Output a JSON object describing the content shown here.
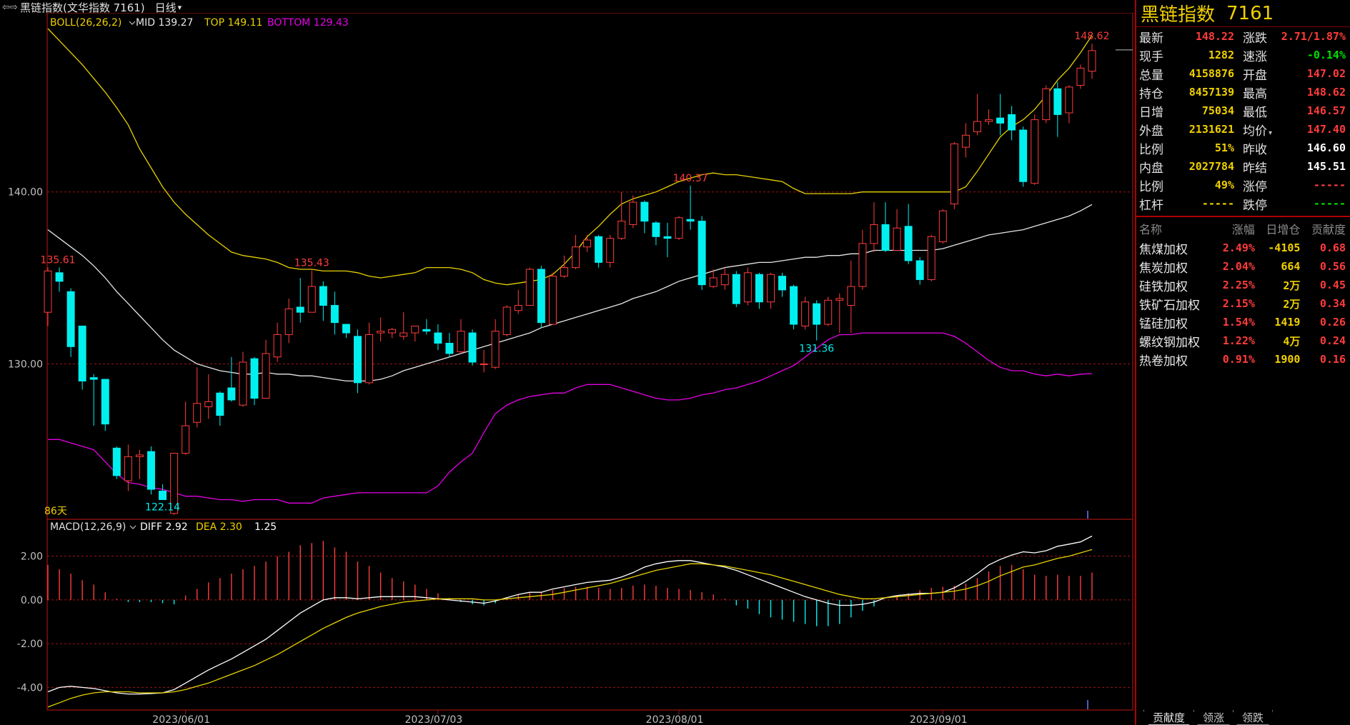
{
  "header": {
    "back_glyph": "⇦⇨",
    "title": "黑链指数(文华指数 7161)",
    "period": "日线",
    "period_icon": "chevron-down-icon"
  },
  "colors": {
    "up": "#ff3c3c",
    "down": "#00f0f0",
    "mid": "#e6e6e6",
    "top": "#e6d200",
    "bottom": "#e600e6",
    "grid": "#a01414",
    "yellow": "#f0d000",
    "green": "#00e000"
  },
  "indicators": {
    "boll": {
      "label": "BOLL(26,26,2)",
      "mid": "MID 139.27",
      "top": "TOP 149.11",
      "bottom": "BOTTOM 129.43"
    },
    "macd": {
      "label": "MACD(12,26,9)",
      "diff": "DIFF 2.92",
      "dea": "DEA 2.30",
      "macd": "1.25"
    }
  },
  "chart_data": {
    "type": "candlestick",
    "price_axis_ticks": [
      "140.00",
      "130.00"
    ],
    "macd_axis_ticks": [
      "2.00",
      "0.00",
      "-2.00",
      "-4.00"
    ],
    "date_labels": [
      "2023/06/01",
      "2023/07/03",
      "2023/08/01",
      "2023/09/01"
    ],
    "span_label": "86天",
    "annotations": [
      {
        "text": "135.61",
        "color": "up"
      },
      {
        "text": "122.14",
        "color": "down"
      },
      {
        "text": "135.43",
        "color": "up"
      },
      {
        "text": "140.37",
        "color": "up"
      },
      {
        "text": "131.36",
        "color": "down"
      },
      {
        "text": "148.62",
        "color": "up"
      }
    ],
    "ylim_price": [
      121,
      150
    ],
    "ylim_macd": [
      -5,
      3
    ],
    "candles": [
      [
        133,
        135.4,
        132.2,
        135.61
      ],
      [
        135.3,
        134.8,
        134.2,
        135.61
      ],
      [
        134.2,
        131.0,
        130.4,
        134.4
      ],
      [
        132.2,
        129.0,
        128.5,
        132.2
      ],
      [
        129.2,
        129.1,
        126.4,
        129.4
      ],
      [
        129.1,
        126.5,
        126.1,
        129.1
      ],
      [
        125.1,
        123.5,
        123.3,
        125.2
      ],
      [
        123.2,
        124.6,
        122.6,
        125.3
      ],
      [
        124.6,
        124.7,
        123.3,
        125.0
      ],
      [
        124.9,
        122.7,
        122.4,
        125.2
      ],
      [
        122.6,
        122.1,
        122.14,
        123.0
      ],
      [
        121.3,
        124.8,
        121.2,
        124.8
      ],
      [
        124.8,
        126.4,
        124.7,
        127.8
      ],
      [
        126.6,
        127.7,
        126.3,
        129.8
      ],
      [
        127.5,
        127.8,
        126.8,
        129.4
      ],
      [
        128.3,
        127.0,
        126.4,
        128.4
      ],
      [
        128.6,
        127.9,
        127.8,
        130.4
      ],
      [
        127.6,
        130.1,
        127.5,
        130.7
      ],
      [
        130.3,
        128.0,
        127.6,
        130.4
      ],
      [
        128.0,
        130.6,
        128.0,
        131.4
      ],
      [
        130.4,
        131.7,
        130.1,
        132.4
      ],
      [
        131.7,
        133.2,
        131.2,
        133.8
      ],
      [
        133.3,
        133.0,
        132.4,
        135.0
      ],
      [
        133.0,
        134.5,
        133.0,
        135.43
      ],
      [
        134.5,
        133.4,
        132.5,
        134.8
      ],
      [
        133.4,
        132.4,
        131.7,
        134.2
      ],
      [
        132.3,
        131.8,
        131.5,
        132.3
      ],
      [
        131.6,
        128.9,
        128.3,
        132.0
      ],
      [
        128.9,
        131.7,
        128.8,
        132.4
      ],
      [
        131.8,
        131.9,
        131.3,
        132.7
      ],
      [
        131.8,
        132.0,
        131.5,
        132.1
      ],
      [
        131.6,
        131.8,
        131.4,
        133.0
      ],
      [
        131.8,
        132.2,
        131.3,
        132.2
      ],
      [
        132.0,
        131.9,
        131.7,
        132.6
      ],
      [
        131.8,
        131.2,
        130.8,
        132.3
      ],
      [
        131.2,
        130.6,
        130.4,
        131.8
      ],
      [
        130.7,
        131.9,
        130.6,
        132.6
      ],
      [
        131.8,
        130.1,
        129.9,
        132.0
      ],
      [
        130.0,
        130.0,
        129.5,
        130.8
      ],
      [
        129.8,
        131.9,
        129.7,
        132.6
      ],
      [
        131.7,
        133.3,
        131.6,
        133.4
      ],
      [
        133.1,
        133.4,
        132.9,
        134.3
      ],
      [
        133.4,
        135.5,
        133.4,
        135.6
      ],
      [
        135.5,
        132.4,
        132.1,
        135.7
      ],
      [
        132.3,
        135.1,
        132.3,
        135.3
      ],
      [
        135.1,
        135.6,
        135.0,
        136.3
      ],
      [
        135.6,
        136.8,
        135.5,
        137.5
      ],
      [
        136.8,
        137.2,
        136.5,
        137.5
      ],
      [
        137.4,
        135.9,
        135.6,
        137.5
      ],
      [
        135.9,
        137.3,
        135.6,
        137.5
      ],
      [
        137.3,
        138.3,
        137.2,
        140.0
      ],
      [
        138.1,
        139.4,
        137.9,
        139.8
      ],
      [
        139.4,
        138.3,
        137.6,
        139.5
      ],
      [
        138.2,
        137.4,
        136.9,
        138.3
      ],
      [
        137.4,
        137.3,
        136.2,
        138.2
      ],
      [
        137.3,
        138.5,
        137.2,
        138.6
      ],
      [
        138.4,
        138.3,
        137.8,
        140.37
      ],
      [
        138.3,
        134.6,
        134.3,
        138.6
      ],
      [
        134.5,
        135.0,
        134.4,
        135.5
      ],
      [
        134.6,
        135.2,
        134.3,
        135.6
      ],
      [
        135.2,
        133.5,
        133.3,
        135.4
      ],
      [
        133.6,
        135.3,
        133.4,
        135.6
      ],
      [
        135.2,
        133.6,
        133.2,
        135.3
      ],
      [
        133.6,
        135.2,
        133.2,
        135.3
      ],
      [
        135.1,
        134.3,
        133.9,
        135.3
      ],
      [
        134.5,
        132.3,
        132.0,
        134.6
      ],
      [
        132.2,
        133.6,
        132.0,
        133.9
      ],
      [
        133.5,
        132.3,
        131.36,
        133.7
      ],
      [
        132.3,
        133.7,
        132.2,
        133.9
      ],
      [
        133.7,
        133.8,
        131.8,
        134.1
      ],
      [
        133.4,
        134.5,
        131.8,
        136.0
      ],
      [
        134.5,
        137.0,
        134.3,
        137.8
      ],
      [
        137.0,
        138.1,
        136.5,
        139.4
      ],
      [
        138.1,
        136.6,
        136.5,
        139.4
      ],
      [
        136.6,
        137.9,
        136.6,
        139.0
      ],
      [
        138.0,
        136.0,
        135.8,
        139.3
      ],
      [
        136.0,
        134.9,
        134.6,
        136.2
      ],
      [
        134.9,
        137.4,
        134.8,
        137.5
      ],
      [
        137.1,
        138.9,
        137.0,
        139.0
      ],
      [
        139.3,
        142.8,
        139.0,
        142.9
      ],
      [
        142.6,
        143.3,
        142.0,
        144.0
      ],
      [
        143.5,
        144.1,
        143.3,
        145.7
      ],
      [
        144.1,
        144.2,
        143.9,
        144.8
      ],
      [
        144.3,
        144.0,
        143.3,
        145.7
      ],
      [
        144.5,
        143.6,
        143.0,
        145.0
      ],
      [
        143.6,
        140.6,
        140.3,
        143.8
      ],
      [
        140.5,
        144.2,
        140.4,
        144.5
      ],
      [
        144.2,
        146.0,
        144.0,
        146.2
      ],
      [
        146.0,
        144.5,
        143.2,
        146.4
      ],
      [
        144.6,
        146.1,
        144.0,
        146.2
      ],
      [
        146.2,
        147.2,
        146.0,
        147.4
      ],
      [
        147.02,
        148.22,
        146.57,
        148.62
      ]
    ],
    "boll_mid": [
      137.8,
      137.3,
      136.8,
      136.3,
      135.7,
      135.0,
      134.2,
      133.5,
      132.8,
      132.1,
      131.4,
      130.8,
      130.4,
      130.0,
      129.8,
      129.6,
      129.5,
      129.4,
      129.4,
      129.5,
      129.4,
      129.4,
      129.3,
      129.3,
      129.2,
      129.1,
      129.0,
      129.0,
      129.0,
      129.1,
      129.3,
      129.6,
      129.8,
      130.0,
      130.2,
      130.4,
      130.6,
      130.8,
      131.0,
      131.2,
      131.4,
      131.6,
      131.8,
      132.1,
      132.3,
      132.5,
      132.7,
      132.9,
      133.1,
      133.3,
      133.5,
      133.8,
      134.0,
      134.2,
      134.5,
      134.8,
      135.0,
      135.2,
      135.4,
      135.6,
      135.7,
      135.8,
      135.9,
      135.9,
      136.0,
      136.1,
      136.2,
      136.2,
      136.3,
      136.3,
      136.4,
      136.4,
      136.6,
      136.6,
      136.6,
      136.6,
      136.6,
      136.6,
      136.7,
      136.9,
      137.1,
      137.3,
      137.5,
      137.6,
      137.7,
      137.8,
      138.0,
      138.2,
      138.4,
      138.6,
      138.9,
      139.27
    ],
    "boll_top": [
      149.5,
      148.8,
      148.1,
      147.4,
      146.6,
      145.8,
      144.9,
      143.9,
      142.5,
      141.4,
      140.3,
      139.4,
      138.7,
      138.1,
      137.5,
      137.0,
      136.5,
      136.3,
      136.2,
      136.1,
      135.9,
      135.6,
      135.5,
      135.5,
      135.4,
      135.4,
      135.4,
      135.3,
      135.1,
      135.0,
      135.1,
      135.2,
      135.3,
      135.6,
      135.6,
      135.6,
      135.5,
      135.3,
      134.9,
      134.7,
      134.6,
      134.7,
      134.8,
      134.9,
      135.2,
      135.8,
      136.5,
      137.4,
      138.0,
      138.7,
      139.3,
      139.6,
      139.8,
      140.0,
      140.3,
      140.6,
      140.8,
      141.0,
      141.1,
      141.0,
      141.0,
      140.9,
      140.8,
      140.7,
      140.6,
      140.2,
      139.9,
      139.9,
      139.9,
      139.9,
      139.9,
      140.0,
      140.0,
      140.0,
      140.0,
      140.0,
      140.0,
      140.0,
      140.0,
      140.0,
      140.3,
      141.2,
      142.2,
      143.2,
      143.8,
      144.2,
      144.8,
      145.6,
      146.5,
      147.2,
      148.1,
      149.11
    ],
    "boll_bottom": [
      125.6,
      125.6,
      125.4,
      125.2,
      125.0,
      124.3,
      123.6,
      123.1,
      123.0,
      122.8,
      122.7,
      122.5,
      122.3,
      122.3,
      122.2,
      122.1,
      122.1,
      122.0,
      122.1,
      122.1,
      122.1,
      121.9,
      121.9,
      121.9,
      122.2,
      122.3,
      122.4,
      122.5,
      122.5,
      122.5,
      122.5,
      122.5,
      122.5,
      122.5,
      122.9,
      123.7,
      124.3,
      124.8,
      126.0,
      127.1,
      127.6,
      127.9,
      128.1,
      128.2,
      128.3,
      128.3,
      128.6,
      128.8,
      128.8,
      128.8,
      128.6,
      128.4,
      128.2,
      128.0,
      127.9,
      127.9,
      128.0,
      128.2,
      128.3,
      128.5,
      128.6,
      128.8,
      129.0,
      129.3,
      129.6,
      129.9,
      130.4,
      130.9,
      131.4,
      131.7,
      131.7,
      131.8,
      131.8,
      131.8,
      131.8,
      131.8,
      131.8,
      131.8,
      131.8,
      131.6,
      131.2,
      130.7,
      130.2,
      129.8,
      129.6,
      129.6,
      129.4,
      129.3,
      129.4,
      129.3,
      129.4,
      129.43
    ],
    "macd_diff": [
      -4.2,
      -4.0,
      -3.95,
      -4.0,
      -4.05,
      -4.15,
      -4.25,
      -4.3,
      -4.3,
      -4.28,
      -4.25,
      -4.1,
      -3.8,
      -3.5,
      -3.2,
      -2.95,
      -2.7,
      -2.4,
      -2.1,
      -1.8,
      -1.4,
      -1.0,
      -0.6,
      -0.3,
      0.0,
      0.1,
      0.1,
      0.05,
      0.1,
      0.15,
      0.15,
      0.15,
      0.15,
      0.1,
      0.05,
      0.0,
      -0.05,
      -0.1,
      -0.15,
      -0.05,
      0.1,
      0.25,
      0.35,
      0.35,
      0.5,
      0.6,
      0.7,
      0.8,
      0.85,
      0.9,
      1.05,
      1.25,
      1.5,
      1.65,
      1.75,
      1.8,
      1.8,
      1.7,
      1.6,
      1.5,
      1.35,
      1.15,
      0.95,
      0.75,
      0.55,
      0.35,
      0.15,
      0.0,
      -0.15,
      -0.25,
      -0.25,
      -0.2,
      -0.1,
      0.1,
      0.2,
      0.25,
      0.3,
      0.3,
      0.35,
      0.55,
      0.85,
      1.2,
      1.6,
      1.85,
      2.05,
      2.2,
      2.15,
      2.25,
      2.45,
      2.55,
      2.65,
      2.92
    ],
    "macd_dea": [
      -4.9,
      -4.7,
      -4.5,
      -4.35,
      -4.25,
      -4.2,
      -4.2,
      -4.2,
      -4.25,
      -4.25,
      -4.25,
      -4.2,
      -4.1,
      -3.95,
      -3.8,
      -3.6,
      -3.4,
      -3.2,
      -3.0,
      -2.75,
      -2.5,
      -2.2,
      -1.9,
      -1.6,
      -1.3,
      -1.05,
      -0.8,
      -0.6,
      -0.45,
      -0.3,
      -0.2,
      -0.1,
      -0.05,
      0.0,
      0.05,
      0.05,
      0.05,
      0.05,
      0.0,
      0.0,
      0.05,
      0.1,
      0.15,
      0.2,
      0.25,
      0.35,
      0.45,
      0.55,
      0.65,
      0.75,
      0.9,
      1.05,
      1.2,
      1.35,
      1.45,
      1.55,
      1.65,
      1.65,
      1.6,
      1.55,
      1.45,
      1.35,
      1.25,
      1.15,
      1.0,
      0.85,
      0.7,
      0.55,
      0.4,
      0.25,
      0.15,
      0.05,
      0.05,
      0.1,
      0.15,
      0.2,
      0.25,
      0.3,
      0.35,
      0.4,
      0.5,
      0.65,
      0.85,
      1.1,
      1.3,
      1.5,
      1.6,
      1.75,
      1.9,
      2.0,
      2.15,
      2.3
    ],
    "macd_hist": [
      1.6,
      1.4,
      1.2,
      0.9,
      0.7,
      0.35,
      0.05,
      -0.1,
      -0.1,
      -0.1,
      -0.15,
      -0.2,
      0.2,
      0.5,
      0.8,
      1.0,
      1.2,
      1.4,
      1.55,
      1.75,
      2.0,
      2.2,
      2.5,
      2.6,
      2.7,
      2.4,
      2.2,
      1.75,
      1.55,
      1.25,
      1.0,
      0.85,
      0.7,
      0.5,
      0.3,
      0.1,
      -0.1,
      -0.2,
      -0.25,
      -0.15,
      0.05,
      0.25,
      0.35,
      0.35,
      0.45,
      0.55,
      0.6,
      0.6,
      0.55,
      0.5,
      0.55,
      0.65,
      0.7,
      0.65,
      0.55,
      0.5,
      0.45,
      0.35,
      0.25,
      0.05,
      -0.25,
      -0.4,
      -0.65,
      -0.8,
      -0.9,
      -1.0,
      -1.1,
      -1.2,
      -1.2,
      -1.1,
      -0.8,
      -0.5,
      -0.3,
      0.0,
      0.2,
      0.3,
      0.45,
      0.55,
      0.6,
      0.65,
      0.75,
      1.0,
      1.3,
      1.55,
      1.6,
      1.4,
      1.15,
      1.1,
      1.15,
      1.1,
      1.1,
      1.25
    ]
  },
  "quote": [
    {
      "l_label": "最新",
      "l_value": "148.22",
      "l_color": "up",
      "r_label": "涨跌",
      "r_value": "2.71/1.87%",
      "r_color": "up"
    },
    {
      "l_label": "现手",
      "l_value": "1282",
      "l_color": "yellow",
      "r_label": "速涨",
      "r_value": "-0.14%",
      "r_color": "green"
    },
    {
      "l_label": "总量",
      "l_value": "4158876",
      "l_color": "yellow",
      "r_label": "开盘",
      "r_value": "147.02",
      "r_color": "up"
    },
    {
      "l_label": "持仓",
      "l_value": "8457139",
      "l_color": "yellow",
      "r_label": "最高",
      "r_value": "148.62",
      "r_color": "up"
    },
    {
      "l_label": "日增",
      "l_value": "75034",
      "l_color": "yellow",
      "r_label": "最低",
      "r_value": "146.57",
      "r_color": "up"
    },
    {
      "l_label": "外盘",
      "l_value": "2131621",
      "l_color": "yellow",
      "r_label": "均价",
      "r_value": "147.40",
      "r_color": "up",
      "r_icon": "caret-down-icon"
    },
    {
      "l_label": "比例",
      "l_value": "51%",
      "l_color": "yellow",
      "r_label": "昨收",
      "r_value": "146.60",
      "r_color": "white"
    },
    {
      "l_label": "内盘",
      "l_value": "2027784",
      "l_color": "yellow",
      "r_label": "昨结",
      "r_value": "145.51",
      "r_color": "white"
    },
    {
      "l_label": "比例",
      "l_value": "49%",
      "l_color": "yellow",
      "r_label": "涨停",
      "r_value": "-----",
      "r_color": "up"
    },
    {
      "l_label": "杠杆",
      "l_value": "-----",
      "l_color": "yellow",
      "r_label": "跌停",
      "r_value": "-----",
      "r_color": "green"
    }
  ],
  "contrib": {
    "headers": [
      "名称",
      "涨幅",
      "日增仓",
      "贡献度"
    ],
    "rows": [
      [
        "焦煤加权",
        "2.49%",
        "-4105",
        "0.68"
      ],
      [
        "焦炭加权",
        "2.04%",
        "664",
        "0.56"
      ],
      [
        "硅铁加权",
        "2.25%",
        "2万",
        "0.45"
      ],
      [
        "铁矿石加权",
        "2.15%",
        "2万",
        "0.34"
      ],
      [
        "锰硅加权",
        "1.54%",
        "1419",
        "0.26"
      ],
      [
        "螺纹钢加权",
        "1.22%",
        "4万",
        "0.24"
      ],
      [
        "热卷加权",
        "0.91%",
        "1900",
        "0.16"
      ]
    ]
  },
  "panel_head": {
    "name": "黑链指数",
    "code": "7161"
  },
  "tabs": [
    {
      "label": "贡献度",
      "active": true
    },
    {
      "label": "领涨",
      "active": false
    },
    {
      "label": "领跌",
      "active": false
    }
  ]
}
